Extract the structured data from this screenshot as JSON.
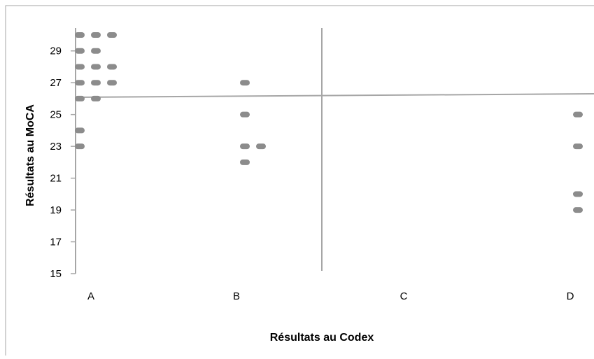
{
  "chart_data": {
    "type": "scatter",
    "xlabel": "Résultats au Codex",
    "ylabel": "Résultats au MoCA",
    "categories": [
      "A",
      "B",
      "C",
      "D"
    ],
    "y_ticks": [
      "15",
      "17",
      "19",
      "21",
      "23",
      "25",
      "27",
      "29"
    ],
    "ylim": [
      15,
      30
    ],
    "grid": false,
    "marker_color": "#8c8c8c",
    "axis_color": "#a6a6a6",
    "frame_color": "#a6a6a6",
    "quadrant_line_color": "#a6a6a6",
    "points": [
      {
        "category": "A",
        "slot": 0,
        "y": 30
      },
      {
        "category": "A",
        "slot": 1,
        "y": 30
      },
      {
        "category": "A",
        "slot": 2,
        "y": 30
      },
      {
        "category": "A",
        "slot": 0,
        "y": 29
      },
      {
        "category": "A",
        "slot": 1,
        "y": 29
      },
      {
        "category": "A",
        "slot": 0,
        "y": 28
      },
      {
        "category": "A",
        "slot": 1,
        "y": 28
      },
      {
        "category": "A",
        "slot": 2,
        "y": 28
      },
      {
        "category": "A",
        "slot": 0,
        "y": 27
      },
      {
        "category": "A",
        "slot": 1,
        "y": 27
      },
      {
        "category": "A",
        "slot": 2,
        "y": 27
      },
      {
        "category": "A",
        "slot": 0,
        "y": 26
      },
      {
        "category": "A",
        "slot": 1,
        "y": 26
      },
      {
        "category": "A",
        "slot": 0,
        "y": 24
      },
      {
        "category": "A",
        "slot": 0,
        "y": 23
      },
      {
        "category": "B",
        "slot": 0,
        "y": 27
      },
      {
        "category": "B",
        "slot": 0,
        "y": 25
      },
      {
        "category": "B",
        "slot": 0,
        "y": 23
      },
      {
        "category": "B",
        "slot": 1,
        "y": 23
      },
      {
        "category": "B",
        "slot": 0,
        "y": 22
      },
      {
        "category": "D",
        "slot": 0,
        "y": 25
      },
      {
        "category": "D",
        "slot": 0,
        "y": 23
      },
      {
        "category": "D",
        "slot": 0,
        "y": 20
      },
      {
        "category": "D",
        "slot": 0,
        "y": 19
      }
    ]
  }
}
